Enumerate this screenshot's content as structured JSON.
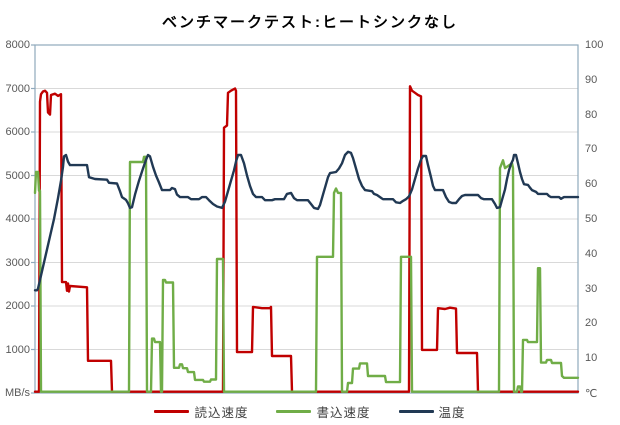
{
  "title": "ベンチマークテスト:ヒートシンクなし",
  "left_axis": {
    "unit_label": "MB/s",
    "min": 0,
    "max": 8000,
    "ticks": [
      8000,
      7000,
      6000,
      5000,
      4000,
      3000,
      2000,
      1000
    ]
  },
  "right_axis": {
    "unit_label": "℃",
    "min": 0,
    "max": 100,
    "ticks": [
      100,
      90,
      80,
      70,
      60,
      50,
      40,
      30,
      20,
      10
    ]
  },
  "legend": [
    {
      "label": "読込速度",
      "color": "#C00000"
    },
    {
      "label": "書込速度",
      "color": "#70AD47"
    },
    {
      "label": "温度",
      "color": "#213954"
    }
  ],
  "colors": {
    "plot_border": "#8FA9BC",
    "gridline": "#D9D9D9",
    "axis_text": "#595959",
    "read": "#C00000",
    "write": "#70AD47",
    "temperature": "#213954"
  },
  "chart_data": {
    "type": "line",
    "title": "ベンチマークテスト:ヒートシンクなし",
    "xlabel": "",
    "ylabel_left": "MB/s",
    "ylabel_right": "℃",
    "x_range": [
      0,
      543
    ],
    "left_ylim": [
      0,
      8000
    ],
    "right_ylim": [
      0,
      100
    ],
    "grid": "horizontal",
    "legend_position": "bottom",
    "series": [
      {
        "name": "読込速度",
        "axis": "left",
        "color": "#C00000",
        "points": [
          [
            0,
            30
          ],
          [
            4,
            30
          ],
          [
            5,
            6700
          ],
          [
            6,
            6870
          ],
          [
            8,
            6930
          ],
          [
            10,
            6950
          ],
          [
            12,
            6900
          ],
          [
            13,
            6450
          ],
          [
            15,
            6400
          ],
          [
            16,
            6850
          ],
          [
            20,
            6880
          ],
          [
            23,
            6830
          ],
          [
            26,
            6870
          ],
          [
            27,
            2550
          ],
          [
            31,
            2550
          ],
          [
            32,
            2350
          ],
          [
            33,
            2520
          ],
          [
            34,
            2330
          ],
          [
            35,
            2460
          ],
          [
            52,
            2430
          ],
          [
            53,
            740
          ],
          [
            76,
            740
          ],
          [
            77,
            30
          ],
          [
            188,
            30
          ],
          [
            189,
            6100
          ],
          [
            192,
            6150
          ],
          [
            193,
            6900
          ],
          [
            196,
            6950
          ],
          [
            200,
            7000
          ],
          [
            201,
            6950
          ],
          [
            202,
            940
          ],
          [
            217,
            940
          ],
          [
            218,
            1980
          ],
          [
            227,
            1950
          ],
          [
            235,
            1950
          ],
          [
            236,
            1980
          ],
          [
            237,
            850
          ],
          [
            256,
            850
          ],
          [
            257,
            30
          ],
          [
            374,
            30
          ],
          [
            375,
            7050
          ],
          [
            377,
            6950
          ],
          [
            380,
            6900
          ],
          [
            383,
            6850
          ],
          [
            386,
            6820
          ],
          [
            387,
            990
          ],
          [
            402,
            990
          ],
          [
            403,
            1950
          ],
          [
            410,
            1930
          ],
          [
            415,
            1960
          ],
          [
            421,
            1940
          ],
          [
            422,
            920
          ],
          [
            442,
            920
          ],
          [
            443,
            30
          ],
          [
            543,
            30
          ]
        ]
      },
      {
        "name": "書込速度",
        "axis": "left",
        "color": "#70AD47",
        "points": [
          [
            0,
            4600
          ],
          [
            1,
            5080
          ],
          [
            3,
            5080
          ],
          [
            4,
            4650
          ],
          [
            5,
            4650
          ],
          [
            6,
            30
          ],
          [
            94,
            30
          ],
          [
            95,
            5310
          ],
          [
            108,
            5310
          ],
          [
            109,
            5430
          ],
          [
            111,
            5430
          ],
          [
            112,
            30
          ],
          [
            116,
            30
          ],
          [
            117,
            1250
          ],
          [
            119,
            1250
          ],
          [
            120,
            1170
          ],
          [
            125,
            1170
          ],
          [
            126,
            30
          ],
          [
            127,
            30
          ],
          [
            128,
            2600
          ],
          [
            130,
            2600
          ],
          [
            131,
            2540
          ],
          [
            138,
            2540
          ],
          [
            139,
            580
          ],
          [
            144,
            580
          ],
          [
            145,
            660
          ],
          [
            147,
            660
          ],
          [
            148,
            570
          ],
          [
            152,
            570
          ],
          [
            153,
            480
          ],
          [
            159,
            480
          ],
          [
            160,
            300
          ],
          [
            168,
            300
          ],
          [
            169,
            260
          ],
          [
            175,
            260
          ],
          [
            176,
            310
          ],
          [
            181,
            310
          ],
          [
            182,
            3080
          ],
          [
            188,
            3080
          ],
          [
            189,
            30
          ],
          [
            281,
            30
          ],
          [
            282,
            3130
          ],
          [
            298,
            3130
          ],
          [
            299,
            4600
          ],
          [
            301,
            4700
          ],
          [
            303,
            4600
          ],
          [
            306,
            4600
          ],
          [
            307,
            30
          ],
          [
            312,
            30
          ],
          [
            313,
            230
          ],
          [
            317,
            230
          ],
          [
            318,
            560
          ],
          [
            324,
            560
          ],
          [
            325,
            680
          ],
          [
            332,
            680
          ],
          [
            333,
            390
          ],
          [
            350,
            390
          ],
          [
            351,
            250
          ],
          [
            365,
            250
          ],
          [
            366,
            3130
          ],
          [
            376,
            3130
          ],
          [
            377,
            30
          ],
          [
            464,
            30
          ],
          [
            465,
            5170
          ],
          [
            468,
            5350
          ],
          [
            470,
            5170
          ],
          [
            477,
            5280
          ],
          [
            478,
            5170
          ],
          [
            479,
            30
          ],
          [
            482,
            30
          ],
          [
            483,
            150
          ],
          [
            485,
            150
          ],
          [
            486,
            30
          ],
          [
            487,
            30
          ],
          [
            488,
            1220
          ],
          [
            492,
            1220
          ],
          [
            493,
            1170
          ],
          [
            502,
            1170
          ],
          [
            503,
            2870
          ],
          [
            505,
            2870
          ],
          [
            506,
            700
          ],
          [
            511,
            700
          ],
          [
            512,
            760
          ],
          [
            516,
            760
          ],
          [
            517,
            690
          ],
          [
            526,
            690
          ],
          [
            527,
            390
          ],
          [
            529,
            350
          ],
          [
            543,
            350
          ]
        ]
      },
      {
        "name": "温度",
        "axis": "right",
        "color": "#213954",
        "points": [
          [
            0,
            29.5
          ],
          [
            2,
            29.5
          ],
          [
            3,
            30
          ],
          [
            7,
            35
          ],
          [
            11,
            40
          ],
          [
            15,
            45
          ],
          [
            19,
            50
          ],
          [
            23,
            56
          ],
          [
            26,
            61
          ],
          [
            28,
            65
          ],
          [
            29,
            68
          ],
          [
            31,
            68.4
          ],
          [
            33,
            66.5
          ],
          [
            35,
            65.5
          ],
          [
            52,
            65.5
          ],
          [
            54,
            62
          ],
          [
            60,
            61.5
          ],
          [
            72,
            61.3
          ],
          [
            74,
            60.4
          ],
          [
            82,
            60.2
          ],
          [
            85,
            58
          ],
          [
            87,
            56.3
          ],
          [
            91,
            55.5
          ],
          [
            93,
            54.5
          ],
          [
            95,
            53.2
          ],
          [
            97,
            53.4
          ],
          [
            100,
            57
          ],
          [
            104,
            61
          ],
          [
            108,
            64.5
          ],
          [
            111,
            67
          ],
          [
            113,
            68.4
          ],
          [
            115,
            68
          ],
          [
            118,
            65
          ],
          [
            121,
            62.5
          ],
          [
            124,
            60.5
          ],
          [
            127,
            58.3
          ],
          [
            135,
            58.3
          ],
          [
            137,
            58.9
          ],
          [
            140,
            58.6
          ],
          [
            142,
            57
          ],
          [
            145,
            56.3
          ],
          [
            153,
            56.3
          ],
          [
            156,
            55.7
          ],
          [
            164,
            55.7
          ],
          [
            167,
            56.3
          ],
          [
            171,
            56.3
          ],
          [
            174,
            55.4
          ],
          [
            178,
            54.3
          ],
          [
            182,
            53.6
          ],
          [
            187,
            53.2
          ],
          [
            190,
            55
          ],
          [
            193,
            58
          ],
          [
            196,
            61
          ],
          [
            199,
            64
          ],
          [
            201,
            66.5
          ],
          [
            203,
            68.4
          ],
          [
            206,
            68.4
          ],
          [
            209,
            66
          ],
          [
            212,
            62.5
          ],
          [
            215,
            59.5
          ],
          [
            218,
            57.2
          ],
          [
            221,
            56.3
          ],
          [
            227,
            56.3
          ],
          [
            230,
            55.4
          ],
          [
            237,
            55.4
          ],
          [
            240,
            55.7
          ],
          [
            249,
            55.7
          ],
          [
            252,
            57.2
          ],
          [
            256,
            57.5
          ],
          [
            259,
            56
          ],
          [
            262,
            55.4
          ],
          [
            273,
            55.4
          ],
          [
            276,
            54.3
          ],
          [
            279,
            53.2
          ],
          [
            283,
            52.9
          ],
          [
            285,
            54
          ],
          [
            288,
            57
          ],
          [
            291,
            60
          ],
          [
            293,
            62
          ],
          [
            295,
            63.2
          ],
          [
            301,
            63.5
          ],
          [
            304,
            64.5
          ],
          [
            307,
            66
          ],
          [
            310,
            68.4
          ],
          [
            313,
            69.3
          ],
          [
            316,
            69
          ],
          [
            318,
            67.5
          ],
          [
            321,
            64.5
          ],
          [
            324,
            61.5
          ],
          [
            327,
            59.5
          ],
          [
            330,
            58.3
          ],
          [
            337,
            58
          ],
          [
            339,
            57.2
          ],
          [
            342,
            56.9
          ],
          [
            345,
            56.3
          ],
          [
            348,
            55.7
          ],
          [
            358,
            55.7
          ],
          [
            361,
            54.8
          ],
          [
            365,
            54.6
          ],
          [
            368,
            55.2
          ],
          [
            371,
            55.7
          ],
          [
            374,
            56.5
          ],
          [
            377,
            58.5
          ],
          [
            380,
            61.5
          ],
          [
            383,
            64.5
          ],
          [
            386,
            67
          ],
          [
            388,
            68.1
          ],
          [
            391,
            68.1
          ],
          [
            393,
            65.5
          ],
          [
            396,
            62
          ],
          [
            398,
            59.5
          ],
          [
            400,
            58.3
          ],
          [
            408,
            58.3
          ],
          [
            411,
            56.3
          ],
          [
            414,
            54.9
          ],
          [
            417,
            54.6
          ],
          [
            421,
            54.6
          ],
          [
            424,
            55.7
          ],
          [
            427,
            56.6
          ],
          [
            430,
            56.9
          ],
          [
            443,
            56.9
          ],
          [
            446,
            56
          ],
          [
            449,
            55.7
          ],
          [
            457,
            55.7
          ],
          [
            460,
            54.3
          ],
          [
            462,
            53.2
          ],
          [
            465,
            53.4
          ],
          [
            467,
            55.5
          ],
          [
            470,
            58.5
          ],
          [
            472,
            61.5
          ],
          [
            474,
            64
          ],
          [
            476,
            65.8
          ],
          [
            478,
            67
          ],
          [
            479,
            68.4
          ],
          [
            481,
            68.4
          ],
          [
            483,
            66
          ],
          [
            485,
            63.5
          ],
          [
            487,
            61.5
          ],
          [
            489,
            60
          ],
          [
            493,
            59.8
          ],
          [
            495,
            59
          ],
          [
            497,
            58.3
          ],
          [
            501,
            57.8
          ],
          [
            503,
            57.2
          ],
          [
            512,
            57.2
          ],
          [
            514,
            56.6
          ],
          [
            516,
            56.3
          ],
          [
            524,
            56.3
          ],
          [
            526,
            55.8
          ],
          [
            529,
            56.3
          ],
          [
            543,
            56.3
          ]
        ]
      }
    ]
  }
}
